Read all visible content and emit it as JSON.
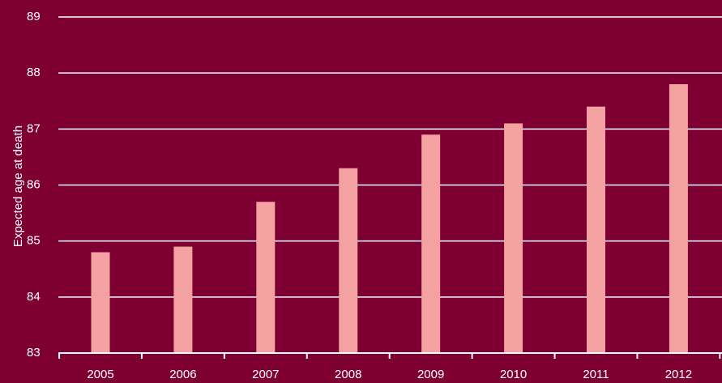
{
  "chart_data": {
    "type": "bar",
    "title": "",
    "xlabel": "",
    "ylabel": "Expected age at death",
    "categories": [
      "2005",
      "2006",
      "2007",
      "2008",
      "2009",
      "2010",
      "2011",
      "2012"
    ],
    "values": [
      84.8,
      84.9,
      85.7,
      86.3,
      86.9,
      87.1,
      87.4,
      87.8
    ],
    "ylim": [
      83,
      89
    ],
    "yticks": [
      83,
      84,
      85,
      86,
      87,
      88,
      89
    ],
    "grid": true,
    "legend": "none"
  },
  "colors": {
    "background": "#7e0032",
    "bar": "#f4a1a1",
    "grid": "#ffffff",
    "text": "#ffffff"
  }
}
